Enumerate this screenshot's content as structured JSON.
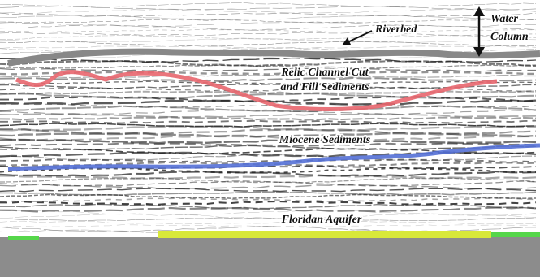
{
  "labels": {
    "riverbed": "Riverbed",
    "water_column": [
      "Water",
      "Column"
    ],
    "relic_channel": [
      "Relic Channel Cut",
      "and Fill Sediments"
    ],
    "miocene": "Miocene Sediments",
    "floridan": "Floridan Aquifer"
  }
}
